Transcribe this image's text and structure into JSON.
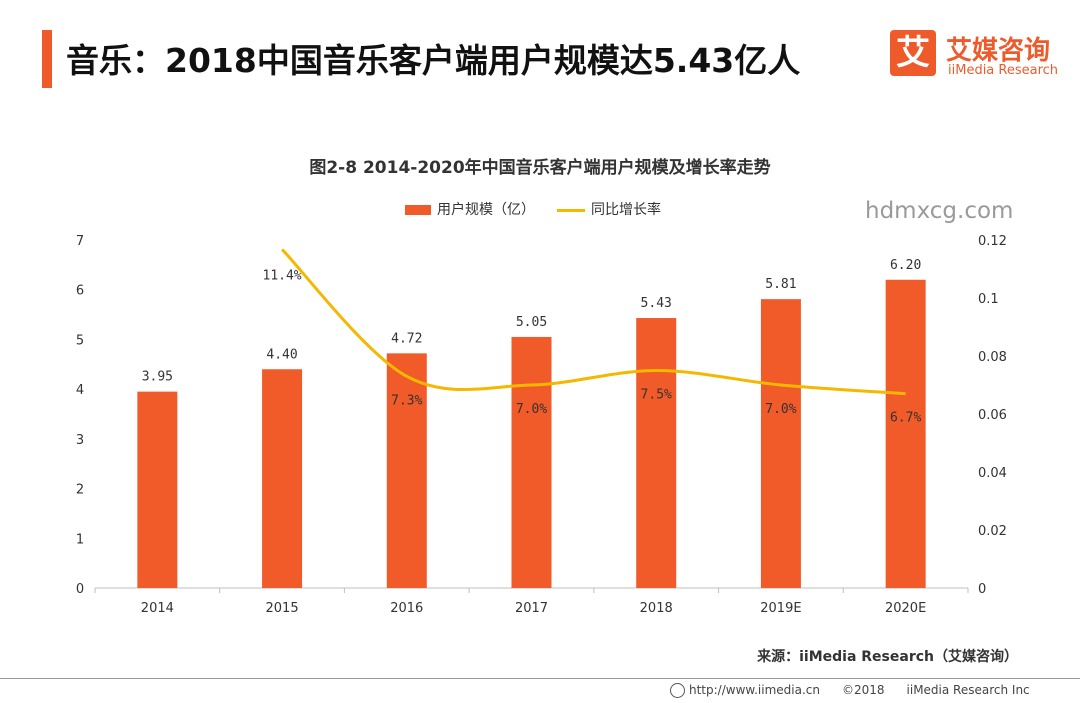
{
  "header": {
    "title": "音乐：2018中国音乐客户端用户规模达5.43亿人"
  },
  "logo": {
    "mark": "艾",
    "name_cn": "艾媒咨询",
    "name_en": "iiMedia Research"
  },
  "watermark": "hdmxcg.com",
  "chart_data": {
    "type": "bar",
    "title": "图2-8 2014-2020年中国音乐客户端用户规模及增长率走势",
    "categories": [
      "2014",
      "2015",
      "2016",
      "2017",
      "2018",
      "2019E",
      "2020E"
    ],
    "series": [
      {
        "name": "用户规模（亿）",
        "type": "bar",
        "axis": "left",
        "color": "#f15a29",
        "values": [
          3.95,
          4.4,
          4.72,
          5.05,
          5.43,
          5.81,
          6.2
        ],
        "labels": [
          "3.95",
          "4.40",
          "4.72",
          "5.05",
          "5.43",
          "5.81",
          "6.20"
        ]
      },
      {
        "name": "同比增长率",
        "type": "line",
        "axis": "right",
        "color": "#f5b800",
        "values": [
          null,
          0.114,
          0.073,
          0.07,
          0.075,
          0.07,
          0.067
        ],
        "labels": [
          "",
          "11.4%",
          "7.3%",
          "7.0%",
          "7.5%",
          "7.0%",
          "6.7%"
        ]
      }
    ],
    "y_left": {
      "min": 0,
      "max": 7,
      "ticks": [
        "0",
        "1",
        "2",
        "3",
        "4",
        "5",
        "6",
        "7"
      ]
    },
    "y_right": {
      "min": 0,
      "max": 0.12,
      "ticks": [
        "0",
        "0.02",
        "0.04",
        "0.06",
        "0.08",
        "0.1",
        "0.12"
      ]
    },
    "grid": false,
    "legend_position": "top-center"
  },
  "source": "来源：iiMedia Research（艾媒咨询）",
  "footer": {
    "url": "http://www.iimedia.cn",
    "copyright": "©2018",
    "company": "iiMedia Research Inc"
  }
}
